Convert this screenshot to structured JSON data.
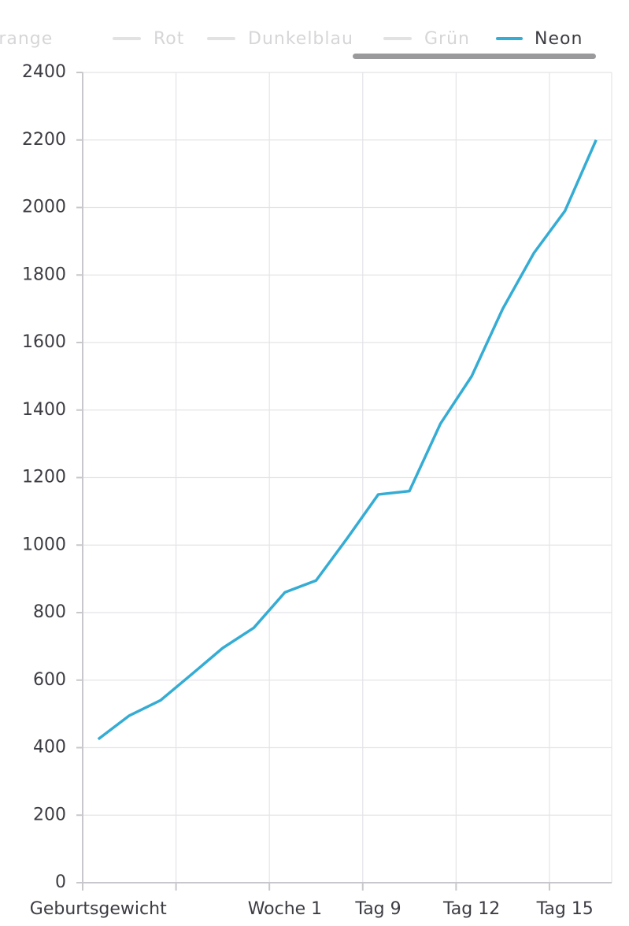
{
  "chart_data": {
    "type": "line",
    "legend_inactive": [
      "Orange",
      "Rot",
      "Dunkelblau",
      "Grün"
    ],
    "categories": [
      "Geburtsgewicht",
      null,
      null,
      null,
      null,
      null,
      "Woche 1",
      null,
      null,
      "Tag 9",
      null,
      null,
      "Tag 12",
      null,
      null,
      "Tag 15",
      null
    ],
    "series": [
      {
        "name": "Neon",
        "color": "#35acd4",
        "values": [
          425,
          495,
          540,
          617,
          695,
          755,
          860,
          895,
          1020,
          1150,
          1160,
          1360,
          1500,
          1700,
          1865,
          1990,
          2200
        ]
      }
    ],
    "ylim": [
      0,
      2400
    ],
    "yticks": [
      0,
      200,
      400,
      600,
      800,
      1000,
      1200,
      1400,
      1600,
      1800,
      2000,
      2200,
      2400
    ],
    "grid": true
  }
}
